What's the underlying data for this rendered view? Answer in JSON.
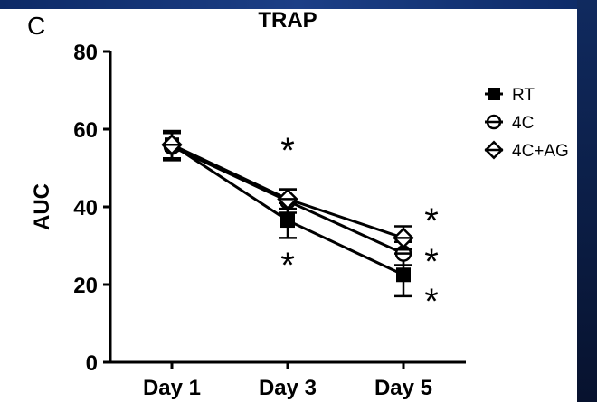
{
  "panel_letter": "C",
  "chart_data": {
    "type": "line",
    "title": "TRAP",
    "xlabel": "",
    "ylabel": "AUC",
    "categories": [
      "Day 1",
      "Day 3",
      "Day 5"
    ],
    "ylim": [
      0,
      80
    ],
    "yticks": [
      0,
      20,
      40,
      60,
      80
    ],
    "grid": false,
    "legend_position": "right",
    "series": [
      {
        "name": "RT",
        "marker": "filled-square",
        "values": [
          56,
          36.5,
          22.5
        ],
        "errors": [
          3.5,
          4.5,
          5.5
        ]
      },
      {
        "name": "4C",
        "marker": "open-circle",
        "values": [
          55.5,
          41.5,
          28
        ],
        "errors": [
          3.5,
          3.0,
          3.0
        ]
      },
      {
        "name": "4C+AG",
        "marker": "open-diamond",
        "values": [
          56,
          42,
          32
        ],
        "errors": [
          3.5,
          2.5,
          3.0
        ]
      }
    ],
    "annotations": [
      {
        "text": "*",
        "category": "Day 3",
        "position": "above"
      },
      {
        "text": "*",
        "category": "Day 3",
        "position": "below"
      },
      {
        "text": "*",
        "category": "Day 5",
        "position": "right"
      },
      {
        "text": "*",
        "category": "Day 5",
        "position": "right"
      },
      {
        "text": "*",
        "category": "Day 5",
        "position": "right"
      }
    ]
  }
}
